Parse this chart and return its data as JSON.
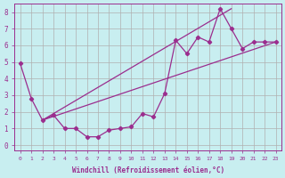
{
  "title": "",
  "xlabel": "Windchill (Refroidissement éolien,°C)",
  "ylabel": "",
  "background_color": "#c8eef0",
  "line_color": "#9b2d8e",
  "grid_color": "#b0b0b0",
  "xlim": [
    -0.5,
    23.5
  ],
  "ylim": [
    -0.3,
    8.5
  ],
  "xticks": [
    0,
    1,
    2,
    3,
    4,
    5,
    6,
    7,
    8,
    9,
    10,
    11,
    12,
    13,
    14,
    15,
    16,
    17,
    18,
    19,
    20,
    21,
    22,
    23
  ],
  "yticks": [
    0,
    1,
    2,
    3,
    4,
    5,
    6,
    7,
    8
  ],
  "series1_x": [
    0,
    1,
    2,
    3,
    4,
    5,
    6,
    7,
    8,
    9,
    10,
    11,
    12,
    13,
    14,
    15,
    16,
    17,
    18,
    19,
    20,
    21,
    22,
    23
  ],
  "series1_y": [
    4.9,
    2.8,
    1.5,
    1.8,
    1.0,
    1.0,
    0.5,
    0.5,
    0.9,
    1.0,
    1.1,
    1.9,
    1.7,
    3.1,
    6.3,
    5.5,
    6.5,
    6.2,
    8.2,
    7.0,
    5.8,
    6.2,
    6.2,
    6.2
  ],
  "trend1_x": [
    2,
    19
  ],
  "trend1_y": [
    1.5,
    8.2
  ],
  "trend2_x": [
    2,
    23
  ],
  "trend2_y": [
    1.5,
    6.2
  ]
}
